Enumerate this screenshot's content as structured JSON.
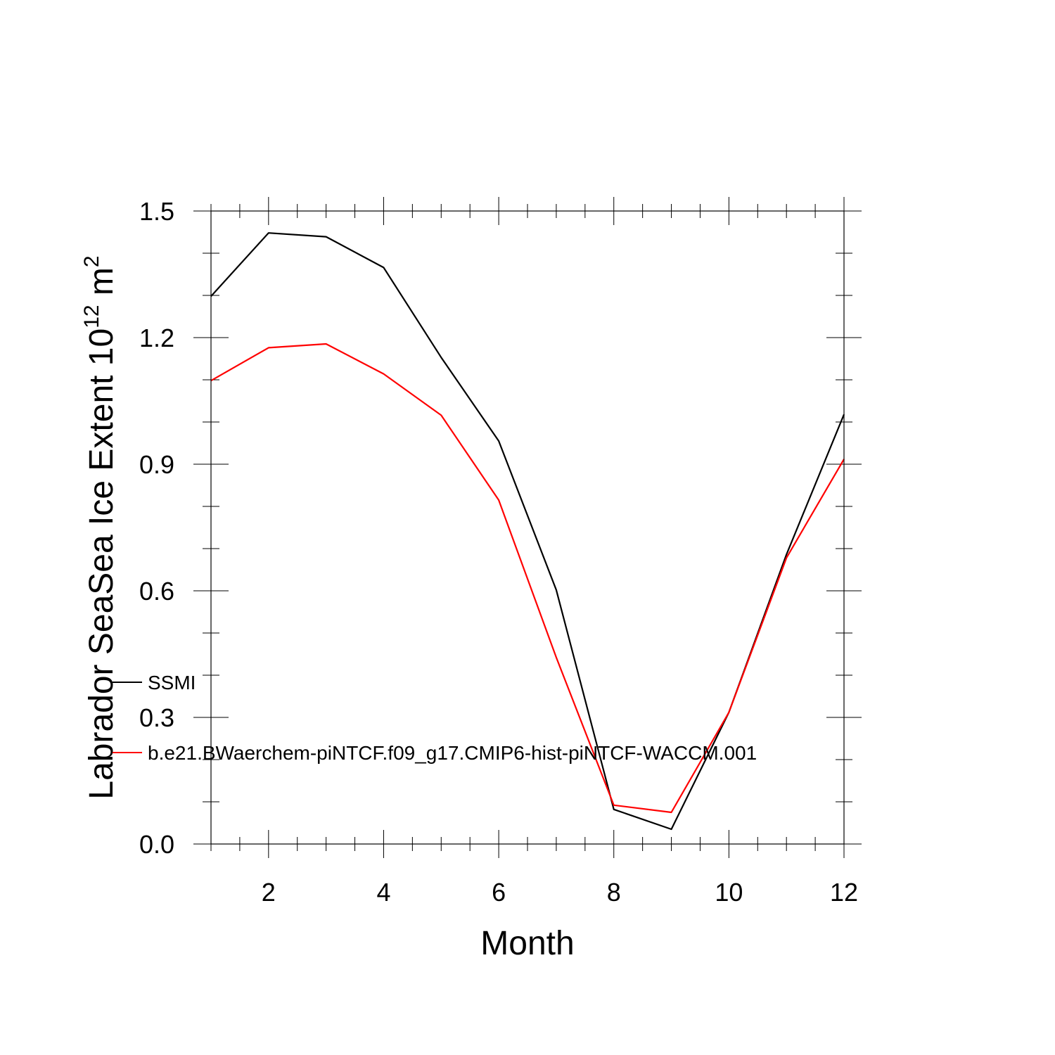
{
  "chart_data": {
    "type": "line",
    "title": "",
    "xlabel": "Month",
    "ylabel": {
      "main": "Labrador SeaSea Ice Extent 10",
      "superscript1": "12",
      "unit": " m",
      "superscript2": "2"
    },
    "xlim": [
      1,
      12
    ],
    "ylim": [
      0,
      1.5
    ],
    "x_ticks": [
      2,
      4,
      6,
      8,
      10,
      12
    ],
    "x_tick_labels": [
      "2",
      "4",
      "6",
      "8",
      "10",
      "12"
    ],
    "y_ticks": [
      0.0,
      0.3,
      0.6,
      0.9,
      1.2,
      1.5
    ],
    "y_tick_labels": [
      "0.0",
      "0.3",
      "0.6",
      "0.9",
      "1.2",
      "1.5"
    ],
    "grid": false,
    "legend_position": "left-lower",
    "x": [
      1,
      2,
      3,
      4,
      5,
      6,
      7,
      8,
      9,
      10,
      11,
      12
    ],
    "series": [
      {
        "name": "SSMI",
        "color": "#000000",
        "values": [
          1.298,
          1.448,
          1.439,
          1.366,
          1.153,
          0.955,
          0.602,
          0.082,
          0.035,
          0.312,
          0.686,
          1.018
        ]
      },
      {
        "name": "b.e21.BWaerchem-piNTCF.f09_g17.CMIP6-hist-piNTCF-WACCM.001",
        "color": "#ff0000",
        "values": [
          1.098,
          1.176,
          1.185,
          1.114,
          1.016,
          0.815,
          0.442,
          0.092,
          0.075,
          0.312,
          0.678,
          0.912
        ]
      }
    ]
  }
}
